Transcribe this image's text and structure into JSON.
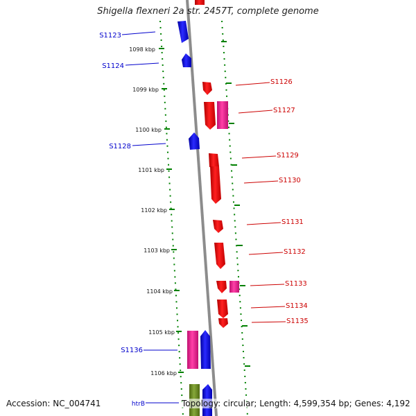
{
  "title": "Shigella flexneri 2a str. 2457T, complete genome",
  "accession_label": "Accession: NC_004741",
  "summary": "Topology: circular; Length: 4,599,354 bp; Genes: 4,192",
  "colors": {
    "forward_gene": "#ee0000",
    "forward_other": "#ee2090",
    "reverse_gene": "#0000ee",
    "reverse_other": "#ee2090",
    "rna": "#6b8e23",
    "tick": "#008000",
    "backbone": "#8c8c8c",
    "left_label": "#0000cc",
    "right_label": "#cc0000"
  },
  "ticks": [
    "1098 kbp",
    "1099 kbp",
    "1100 kbp",
    "1101 kbp",
    "1102 kbp",
    "1103 kbp",
    "1104 kbp",
    "1105 kbp",
    "1106 kbp"
  ],
  "left_labels": [
    "S1123",
    "S1124",
    "S1128",
    "S1136",
    "htrB"
  ],
  "right_labels": [
    "S1126",
    "S1127",
    "S1129",
    "S1130",
    "S1131",
    "S1132",
    "S1133",
    "S1134",
    "S1135"
  ]
}
